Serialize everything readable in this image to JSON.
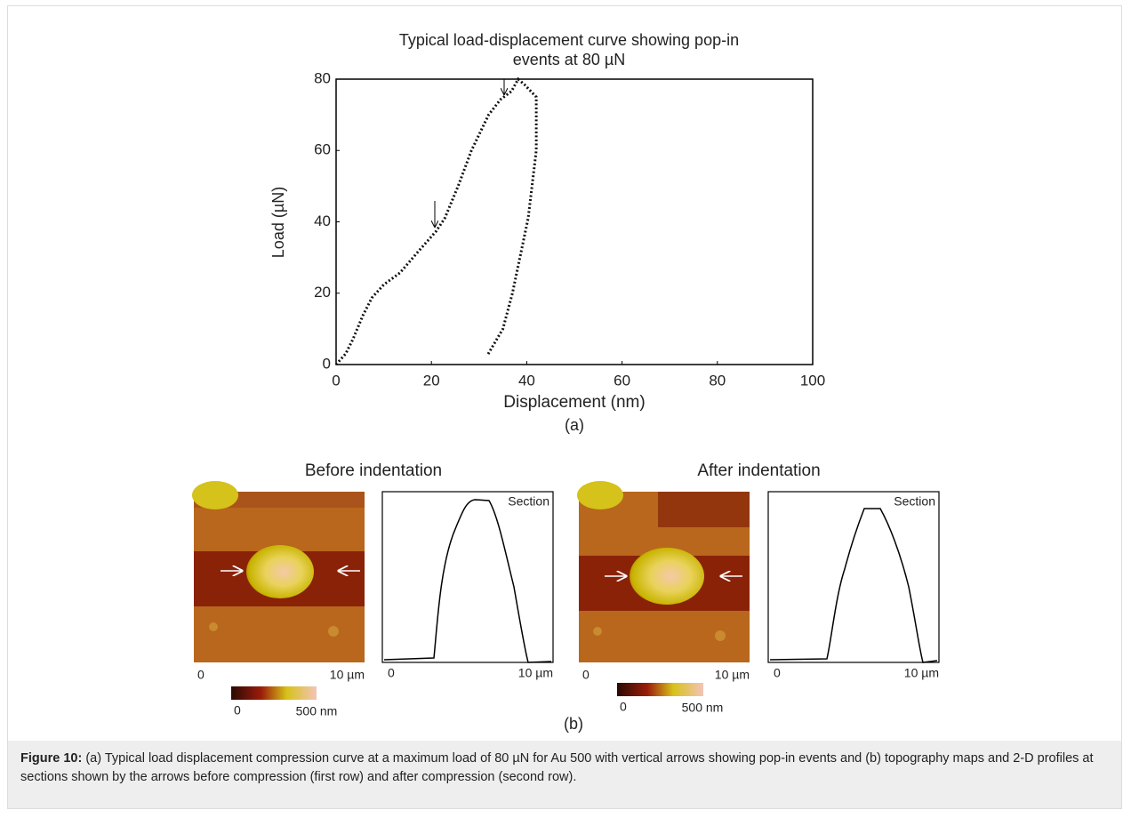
{
  "chart_data": {
    "type": "line",
    "title": "Typical load-displacement curve showing pop-in events at 80 µN",
    "x_label": "Displacement (nm)",
    "y_label": "Load (µN)",
    "panel_label": "(a)",
    "xlim": [
      0,
      100
    ],
    "ylim": [
      0,
      80
    ],
    "xticks": [
      0,
      20,
      40,
      60,
      80,
      100
    ],
    "yticks": [
      0,
      20,
      40,
      60,
      80
    ],
    "color": "#111111",
    "x": [
      0,
      2,
      3.5,
      5.6,
      7.5,
      10,
      13.4,
      16.8,
      21,
      22.8,
      25.6,
      28.4,
      32,
      34.5,
      36.8,
      38.2,
      39.5,
      42,
      42,
      40.3,
      37,
      35,
      31.7
    ],
    "values": [
      0,
      3,
      7,
      13.7,
      18.7,
      22.4,
      25.7,
      31,
      37.4,
      41,
      50,
      60,
      70,
      74.3,
      76.6,
      80,
      78.5,
      75,
      60,
      41,
      20,
      10,
      2.5
    ]
  },
  "panel_b": {
    "label": "(b)",
    "panels": [
      {
        "title": "Before indentation",
        "map_start": "0",
        "map_end": "10 µm",
        "bar_start": "0",
        "bar_end": "500 nm",
        "section": "Section",
        "section_start": "0",
        "section_end": "10 µm"
      },
      {
        "title": "After indentation",
        "map_start": "0",
        "map_end": "10 µm",
        "bar_start": "0",
        "bar_end": "500 nm",
        "section": "Section",
        "section_start": "0",
        "section_end": "10 µm"
      }
    ]
  },
  "caption": {
    "label": "Figure 10:",
    "text": "(a) Typical load displacement compression curve at a maximum load of 80 µN for Au 500 with vertical arrows showing pop-in events and (b) topography maps and 2-D profiles at sections shown by the arrows before compression (first row) and after compression (second row)."
  }
}
